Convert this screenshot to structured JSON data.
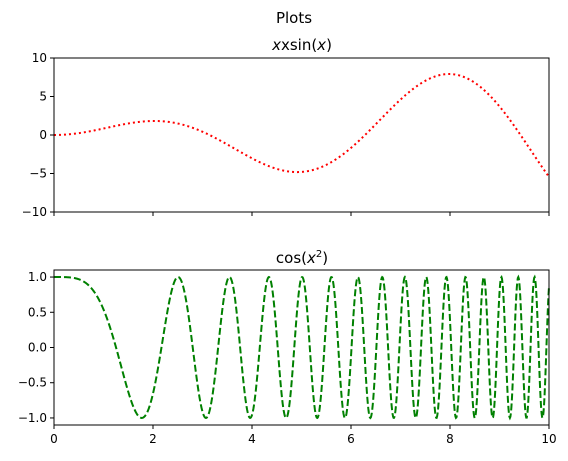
{
  "suptitle": "Plots",
  "chart_data": [
    {
      "type": "line",
      "title": {
        "base": "xsin(",
        "var": "x",
        "close": ")"
      },
      "xlim": [
        0,
        10
      ],
      "ylim": [
        -10,
        10
      ],
      "xticks": [
        0,
        2,
        4,
        6,
        8,
        10
      ],
      "show_x_tick_labels": false,
      "yticks": [
        -10,
        -5,
        0,
        5,
        10
      ],
      "ytick_labels": [
        "−10",
        "−5",
        "0",
        "5",
        "10"
      ],
      "grid": false,
      "series": [
        {
          "function": "x*sin(x)",
          "color": "#ff0000",
          "linestyle": "dotted",
          "x": [
            0,
            0.5,
            1,
            1.5,
            2,
            2.03,
            2.5,
            3,
            3.5,
            4,
            4.5,
            4.91,
            5,
            5.5,
            6,
            6.5,
            7,
            7.5,
            7.98,
            8.5,
            9,
            9.5,
            10
          ],
          "y": [
            0,
            0.24,
            0.84,
            1.5,
            1.82,
            1.82,
            1.5,
            0.42,
            -1.23,
            -3.03,
            -4.4,
            -4.81,
            -4.79,
            -3.89,
            -1.68,
            1.39,
            4.6,
            7.04,
            7.92,
            6.8,
            3.71,
            -0.71,
            -5.44
          ]
        }
      ]
    },
    {
      "type": "line",
      "title": {
        "base": "cos(",
        "var": "x",
        "sup": "2",
        "close": ")"
      },
      "xlim": [
        0,
        10
      ],
      "ylim": [
        -1.1,
        1.1
      ],
      "xticks": [
        0,
        2,
        4,
        6,
        8,
        10
      ],
      "xtick_labels": [
        "0",
        "2",
        "4",
        "6",
        "8",
        "10"
      ],
      "show_x_tick_labels": true,
      "yticks": [
        -1.0,
        -0.5,
        0.0,
        0.5,
        1.0
      ],
      "ytick_labels": [
        "−1.0",
        "−0.5",
        "0.0",
        "0.5",
        "1.0"
      ],
      "grid": false,
      "series": [
        {
          "function": "cos(x^2)",
          "color": "#008000",
          "linestyle": "dashed",
          "x": [
            0,
            0.5,
            1,
            1.25,
            1.5,
            1.77,
            2,
            2.25,
            2.51,
            2.75,
            3.07,
            3.25,
            3.54,
            3.75,
            3.96,
            4.15,
            4.34,
            4.5,
            4.69,
            4.86,
            5.01,
            5.17,
            5.31,
            5.45,
            5.6,
            5.73,
            5.85,
            5.98,
            6.13
          ],
          "y": [
            1,
            0.97,
            0.54,
            0.01,
            -0.63,
            -1,
            -0.65,
            0.34,
            1,
            0.6,
            -1,
            -0.48,
            1,
            0.07,
            -1,
            -0.19,
            1,
            0.07,
            -1,
            0.27,
            1,
            -0.15,
            -1,
            0.39,
            1,
            -0.25,
            -1,
            0.46,
            1
          ]
        }
      ]
    }
  ]
}
